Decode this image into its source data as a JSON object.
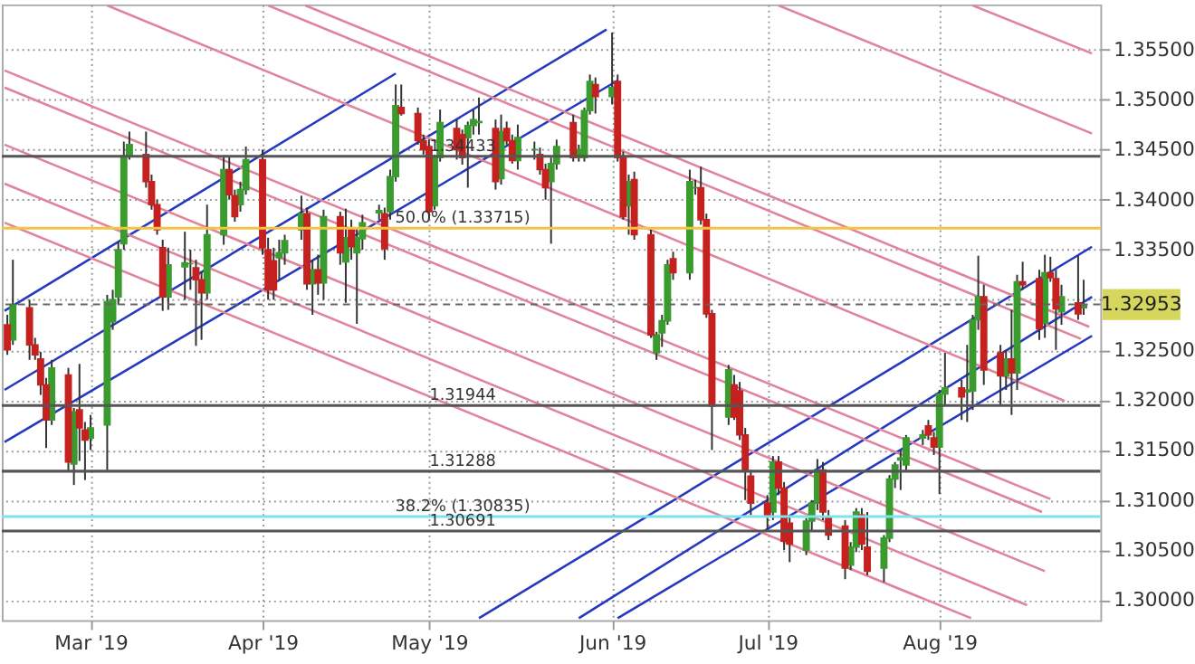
{
  "chart_data": {
    "type": "candlestick",
    "xlim": [
      "2019-02-13",
      "2019-08-30"
    ],
    "xticks": [
      {
        "value": "2019-03-01",
        "label": "Mar '19"
      },
      {
        "value": "2019-04-01",
        "label": "Apr '19"
      },
      {
        "value": "2019-05-01",
        "label": "May '19"
      },
      {
        "value": "2019-06-03",
        "label": "Jun '19"
      },
      {
        "value": "2019-07-01",
        "label": "Jul '19"
      },
      {
        "value": "2019-08-01",
        "label": "Aug '19"
      }
    ],
    "ylim": [
      1.298,
      1.3595
    ],
    "yticks": [
      {
        "value": 1.3,
        "label": "1.30000"
      },
      {
        "value": 1.305,
        "label": "1.30500"
      },
      {
        "value": 1.31,
        "label": "1.31000"
      },
      {
        "value": 1.315,
        "label": "1.31500"
      },
      {
        "value": 1.32,
        "label": "1.32000"
      },
      {
        "value": 1.325,
        "label": "1.32500"
      },
      {
        "value": 1.33,
        "label": null
      },
      {
        "value": 1.335,
        "label": "1.33500"
      },
      {
        "value": 1.34,
        "label": "1.34000"
      },
      {
        "value": 1.345,
        "label": "1.34500"
      },
      {
        "value": 1.35,
        "label": "1.35000"
      },
      {
        "value": 1.355,
        "label": "1.35500"
      }
    ],
    "grid": true,
    "series": [
      {
        "color": "#3a9b2e",
        "x": [
          "2019-02-15",
          "2019-02-22",
          "2019-02-26",
          "2019-03-01",
          "2019-03-04",
          "2019-03-05",
          "2019-03-06",
          "2019-03-07",
          "2019-03-08",
          "2019-03-15",
          "2019-03-18",
          "2019-03-19",
          "2019-03-22",
          "2019-03-25",
          "2019-03-28",
          "2019-03-29",
          "2019-04-04",
          "2019-04-05",
          "2019-04-08",
          "2019-04-10",
          "2019-04-12",
          "2019-04-16",
          "2019-04-18",
          "2019-04-19",
          "2019-04-22",
          "2019-04-24",
          "2019-04-25",
          "2019-05-02",
          "2019-05-03",
          "2019-05-08",
          "2019-05-09",
          "2019-05-10",
          "2019-05-14",
          "2019-05-17",
          "2019-05-20",
          "2019-05-23",
          "2019-05-24",
          "2019-05-28",
          "2019-05-29",
          "2019-05-30",
          "2019-06-03",
          "2019-06-06",
          "2019-06-11",
          "2019-06-12",
          "2019-06-13",
          "2019-06-17",
          "2019-06-18",
          "2019-06-24",
          "2019-07-02",
          "2019-07-08",
          "2019-07-09",
          "2019-07-10",
          "2019-07-16",
          "2019-07-17",
          "2019-07-22",
          "2019-07-23",
          "2019-07-24",
          "2019-07-25",
          "2019-07-26",
          "2019-07-29",
          "2019-08-01",
          "2019-08-02",
          "2019-08-06",
          "2019-08-07",
          "2019-08-08",
          "2019-08-13",
          "2019-08-15",
          "2019-08-20",
          "2019-08-23",
          "2019-08-27"
        ],
        "ohlc": [
          [
            1.326,
            1.334,
            1.3255,
            1.3295
          ],
          [
            1.318,
            1.324,
            1.3175,
            1.3232
          ],
          [
            1.3136,
            1.3192,
            1.3115,
            1.3188
          ],
          [
            1.3162,
            1.3185,
            1.315,
            1.3172
          ],
          [
            1.3175,
            1.3305,
            1.313,
            1.3298
          ],
          [
            1.3278,
            1.331,
            1.327,
            1.33
          ],
          [
            1.3303,
            1.3358,
            1.3295,
            1.335
          ],
          [
            1.3356,
            1.3458,
            1.335,
            1.3444
          ],
          [
            1.3444,
            1.3468,
            1.344,
            1.3455
          ],
          [
            1.3303,
            1.3352,
            1.329,
            1.3335
          ],
          [
            1.3333,
            1.3368,
            1.33,
            1.3337
          ],
          [
            1.3336,
            1.335,
            1.331,
            1.3336
          ],
          [
            1.3307,
            1.3395,
            1.33,
            1.3365
          ],
          [
            1.3365,
            1.3444,
            1.3355,
            1.343
          ],
          [
            1.3395,
            1.3418,
            1.3388,
            1.341
          ],
          [
            1.341,
            1.3453,
            1.3405,
            1.344
          ],
          [
            1.3342,
            1.336,
            1.332,
            1.3347
          ],
          [
            1.3347,
            1.3365,
            1.3335,
            1.3359
          ],
          [
            1.337,
            1.3404,
            1.336,
            1.3386
          ],
          [
            1.3316,
            1.334,
            1.3285,
            1.333
          ],
          [
            1.3317,
            1.339,
            1.33,
            1.3383
          ],
          [
            1.3338,
            1.3391,
            1.3297,
            1.3362
          ],
          [
            1.3347,
            1.3372,
            1.3276,
            1.3362
          ],
          [
            1.3361,
            1.3385,
            1.335,
            1.3377
          ],
          [
            1.3387,
            1.3395,
            1.338,
            1.3389
          ],
          [
            1.3388,
            1.343,
            1.338,
            1.3423
          ],
          [
            1.3423,
            1.3515,
            1.3418,
            1.3494
          ],
          [
            1.3394,
            1.3445,
            1.339,
            1.3442
          ],
          [
            1.3442,
            1.349,
            1.3438,
            1.3477
          ],
          [
            1.3462,
            1.3478,
            1.3412,
            1.3474
          ],
          [
            1.3474,
            1.349,
            1.3465,
            1.348
          ],
          [
            1.3477,
            1.3502,
            1.3465,
            1.3478
          ],
          [
            1.3421,
            1.3485,
            1.3415,
            1.3468
          ],
          [
            1.3439,
            1.3475,
            1.343,
            1.3462
          ],
          [
            1.345,
            1.3458,
            1.344,
            1.345
          ],
          [
            1.3418,
            1.3442,
            1.3356,
            1.3436
          ],
          [
            1.3436,
            1.346,
            1.343,
            1.3453
          ],
          [
            1.3442,
            1.3455,
            1.3438,
            1.345
          ],
          [
            1.3442,
            1.3492,
            1.3438,
            1.3489
          ],
          [
            1.3489,
            1.3525,
            1.3485,
            1.3518
          ],
          [
            1.3503,
            1.3567,
            1.3495,
            1.3512
          ],
          [
            1.3394,
            1.3425,
            1.3365,
            1.3418
          ],
          [
            1.3247,
            1.3268,
            1.324,
            1.3265
          ],
          [
            1.3267,
            1.3285,
            1.3253,
            1.3279
          ],
          [
            1.3279,
            1.334,
            1.3275,
            1.3335
          ],
          [
            1.3327,
            1.343,
            1.332,
            1.3418
          ],
          [
            1.3412,
            1.342,
            1.3405,
            1.3412
          ],
          [
            1.3183,
            1.3235,
            1.3175,
            1.323
          ],
          [
            1.3088,
            1.3144,
            1.308,
            1.3138
          ],
          [
            1.305,
            1.3082,
            1.3045,
            1.3079
          ],
          [
            1.3079,
            1.31,
            1.307,
            1.3097
          ],
          [
            1.3097,
            1.3141,
            1.309,
            1.313
          ],
          [
            1.3035,
            1.3058,
            1.303,
            1.3053
          ],
          [
            1.3053,
            1.3092,
            1.3048,
            1.3088
          ],
          [
            1.3032,
            1.3065,
            1.3018,
            1.3062
          ],
          [
            1.3062,
            1.3125,
            1.3058,
            1.3121
          ],
          [
            1.3121,
            1.3138,
            1.3112,
            1.3135
          ],
          [
            1.314,
            1.315,
            1.311,
            1.3142
          ],
          [
            1.3135,
            1.3165,
            1.313,
            1.3162
          ],
          [
            1.3162,
            1.317,
            1.3155,
            1.3165
          ],
          [
            1.3153,
            1.321,
            1.3106,
            1.3206
          ],
          [
            1.3206,
            1.3247,
            1.3194,
            1.3212
          ],
          [
            1.3208,
            1.3255,
            1.3178,
            1.321
          ],
          [
            1.3209,
            1.3285,
            1.319,
            1.328
          ],
          [
            1.328,
            1.3344,
            1.327,
            1.3303
          ],
          [
            1.3224,
            1.325,
            1.321,
            1.3241
          ],
          [
            1.3227,
            1.3325,
            1.321,
            1.3318
          ],
          [
            1.3277,
            1.3345,
            1.3262,
            1.3327
          ],
          [
            1.3288,
            1.3315,
            1.3275,
            1.3303
          ],
          [
            1.3292,
            1.332,
            1.3285,
            1.3295
          ]
        ]
      },
      {
        "color": "#c4211f",
        "x": [
          "2019-02-14",
          "2019-02-18",
          "2019-02-19",
          "2019-02-20",
          "2019-02-21",
          "2019-02-25",
          "2019-02-27",
          "2019-02-28",
          "2019-03-11",
          "2019-03-12",
          "2019-03-13",
          "2019-03-14",
          "2019-03-20",
          "2019-03-21",
          "2019-03-26",
          "2019-03-27",
          "2019-04-01",
          "2019-04-02",
          "2019-04-03",
          "2019-04-09",
          "2019-04-11",
          "2019-04-15",
          "2019-04-17",
          "2019-04-23",
          "2019-04-26",
          "2019-04-29",
          "2019-04-30",
          "2019-05-01",
          "2019-05-06",
          "2019-05-07",
          "2019-05-13",
          "2019-05-15",
          "2019-05-16",
          "2019-05-21",
          "2019-05-22",
          "2019-05-27",
          "2019-05-31",
          "2019-06-04",
          "2019-06-05",
          "2019-06-07",
          "2019-06-10",
          "2019-06-14",
          "2019-06-19",
          "2019-06-20",
          "2019-06-21",
          "2019-06-25",
          "2019-06-26",
          "2019-06-27",
          "2019-06-28",
          "2019-07-01",
          "2019-07-03",
          "2019-07-04",
          "2019-07-05",
          "2019-07-11",
          "2019-07-12",
          "2019-07-15",
          "2019-07-18",
          "2019-07-19",
          "2019-07-30",
          "2019-07-31",
          "2019-08-05",
          "2019-08-09",
          "2019-08-12",
          "2019-08-14",
          "2019-08-16",
          "2019-08-19",
          "2019-08-21",
          "2019-08-22",
          "2019-08-26"
        ],
        "ohlc": [
          [
            1.3275,
            1.3285,
            1.3245,
            1.325
          ],
          [
            1.3292,
            1.33,
            1.324,
            1.3255
          ],
          [
            1.3255,
            1.3262,
            1.324,
            1.3245
          ],
          [
            1.3241,
            1.3248,
            1.3205,
            1.3215
          ],
          [
            1.3215,
            1.3222,
            1.3152,
            1.318
          ],
          [
            1.3225,
            1.3232,
            1.3128,
            1.3138
          ],
          [
            1.319,
            1.3236,
            1.3139,
            1.3172
          ],
          [
            1.317,
            1.3178,
            1.312,
            1.316
          ],
          [
            1.3445,
            1.3468,
            1.3412,
            1.3418
          ],
          [
            1.3418,
            1.3425,
            1.339,
            1.3395
          ],
          [
            1.3395,
            1.34,
            1.3365,
            1.337
          ],
          [
            1.3352,
            1.336,
            1.3289,
            1.3303
          ],
          [
            1.3332,
            1.334,
            1.3254,
            1.332
          ],
          [
            1.332,
            1.3328,
            1.326,
            1.3307
          ],
          [
            1.343,
            1.3444,
            1.34,
            1.3405
          ],
          [
            1.3404,
            1.341,
            1.3378,
            1.3383
          ],
          [
            1.344,
            1.345,
            1.3345,
            1.3352
          ],
          [
            1.335,
            1.3362,
            1.33,
            1.331
          ],
          [
            1.3339,
            1.3352,
            1.33,
            1.331
          ],
          [
            1.3386,
            1.3392,
            1.331,
            1.3316
          ],
          [
            1.333,
            1.3345,
            1.3305,
            1.3317
          ],
          [
            1.3383,
            1.3388,
            1.3335,
            1.3347
          ],
          [
            1.337,
            1.338,
            1.334,
            1.3353
          ],
          [
            1.3386,
            1.3392,
            1.334,
            1.3351
          ],
          [
            1.3492,
            1.3515,
            1.3484,
            1.3486
          ],
          [
            1.3486,
            1.3492,
            1.3455,
            1.3459
          ],
          [
            1.3459,
            1.3465,
            1.3445,
            1.345
          ],
          [
            1.3453,
            1.346,
            1.338,
            1.3388
          ],
          [
            1.3471,
            1.348,
            1.344,
            1.345
          ],
          [
            1.3465,
            1.347,
            1.3435,
            1.3442
          ],
          [
            1.3471,
            1.348,
            1.341,
            1.3418
          ],
          [
            1.3471,
            1.3478,
            1.3455,
            1.3459
          ],
          [
            1.3459,
            1.3465,
            1.3436,
            1.3439
          ],
          [
            1.3445,
            1.3452,
            1.3425,
            1.343
          ],
          [
            1.343,
            1.3436,
            1.34,
            1.3412
          ],
          [
            1.3477,
            1.3485,
            1.3438,
            1.3442
          ],
          [
            1.3515,
            1.3522,
            1.3486,
            1.3503
          ],
          [
            1.3518,
            1.3525,
            1.3438,
            1.3442
          ],
          [
            1.3442,
            1.3448,
            1.338,
            1.3383
          ],
          [
            1.342,
            1.3428,
            1.336,
            1.3365
          ],
          [
            1.3365,
            1.337,
            1.3262,
            1.3265
          ],
          [
            1.3341,
            1.3348,
            1.332,
            1.3327
          ],
          [
            1.3412,
            1.3433,
            1.3375,
            1.338
          ],
          [
            1.338,
            1.3386,
            1.3282,
            1.3286
          ],
          [
            1.3286,
            1.329,
            1.315,
            1.3194
          ],
          [
            1.3215,
            1.3225,
            1.318,
            1.3183
          ],
          [
            1.3209,
            1.3218,
            1.316,
            1.3165
          ],
          [
            1.3165,
            1.3172,
            1.31,
            1.313
          ],
          [
            1.3124,
            1.313,
            1.3085,
            1.3097
          ],
          [
            1.3097,
            1.3105,
            1.307,
            1.3085
          ],
          [
            1.3138,
            1.3144,
            1.3105,
            1.3112
          ],
          [
            1.3112,
            1.3118,
            1.305,
            1.3059
          ],
          [
            1.3077,
            1.3085,
            1.3038,
            1.3056
          ],
          [
            1.313,
            1.3138,
            1.308,
            1.3088
          ],
          [
            1.3082,
            1.309,
            1.306,
            1.3065
          ],
          [
            1.3074,
            1.308,
            1.3021,
            1.3032
          ],
          [
            1.3085,
            1.3092,
            1.305,
            1.3056
          ],
          [
            1.3053,
            1.3088,
            1.3025,
            1.3029
          ],
          [
            1.3174,
            1.318,
            1.316,
            1.3165
          ],
          [
            1.3162,
            1.3168,
            1.3145,
            1.3153
          ],
          [
            1.3212,
            1.322,
            1.318,
            1.3203
          ],
          [
            1.3303,
            1.3315,
            1.3215,
            1.323
          ],
          [
            1.3247,
            1.3255,
            1.3195,
            1.3224
          ],
          [
            1.3241,
            1.329,
            1.3185,
            1.3227
          ],
          [
            1.3318,
            1.3338,
            1.331,
            1.3315
          ],
          [
            1.3321,
            1.333,
            1.326,
            1.3271
          ],
          [
            1.3327,
            1.3343,
            1.3318,
            1.3322
          ],
          [
            1.3321,
            1.333,
            1.325,
            1.3291
          ],
          [
            1.3297,
            1.3344,
            1.328,
            1.3286
          ]
        ]
      },
      {
        "type": "line",
        "color": "#2438c0",
        "x": [
          "2019-02-13T12:00",
          "2019-04-25"
        ],
        "values": [
          1.3289,
          1.3526
        ]
      },
      {
        "type": "line",
        "color": "#2438c0",
        "x": [
          "2019-02-13T12:00",
          "2019-06-02"
        ],
        "values": [
          1.321,
          1.357
        ]
      },
      {
        "type": "line",
        "color": "#2438c0",
        "x": [
          "2019-02-13T12:00",
          "2019-06-04"
        ],
        "values": [
          1.3158,
          1.3519
        ]
      },
      {
        "type": "line",
        "color": "#2438c0",
        "x": [
          "2019-05-10",
          "2019-08-28T12:00"
        ],
        "values": [
          1.2982,
          1.3353
        ]
      },
      {
        "type": "line",
        "color": "#2438c0",
        "x": [
          "2019-05-28",
          "2019-08-28T12:00"
        ],
        "values": [
          1.2982,
          1.3303
        ]
      },
      {
        "type": "line",
        "color": "#2438c0",
        "x": [
          "2019-06-04",
          "2019-08-28T12:00"
        ],
        "values": [
          1.2982,
          1.3264
        ]
      },
      {
        "type": "line",
        "color": "#e0849c",
        "x": [
          "2019-08-07",
          "2019-08-28T12:00"
        ],
        "values": [
          1.3594,
          1.3546
        ]
      },
      {
        "type": "line",
        "color": "#e0849c",
        "x": [
          "2019-07-03",
          "2019-08-28T12:00"
        ],
        "values": [
          1.3594,
          1.3466
        ]
      },
      {
        "type": "line",
        "color": "#e0849c",
        "x": [
          "2019-04-08T17:00",
          "2019-08-28"
        ],
        "values": [
          1.3594,
          1.3273
        ]
      },
      {
        "type": "line",
        "color": "#e0849c",
        "x": [
          "2019-04-02",
          "2019-08-26T12:00"
        ],
        "values": [
          1.3594,
          1.3261
        ]
      },
      {
        "type": "line",
        "color": "#e0849c",
        "x": [
          "2019-03-04",
          "2019-08-23T14:00"
        ],
        "values": [
          1.3594,
          1.3199
        ]
      },
      {
        "type": "line",
        "color": "#e0849c",
        "x": [
          "2019-02-13T12:00",
          "2019-08-21"
        ],
        "values": [
          1.3529,
          1.3101
        ]
      },
      {
        "type": "line",
        "color": "#e0849c",
        "x": [
          "2019-02-13T12:00",
          "2019-08-19T12:00"
        ],
        "values": [
          1.3512,
          1.3088
        ]
      },
      {
        "type": "line",
        "color": "#e0849c",
        "x": [
          "2019-02-13T12:00",
          "2019-08-20"
        ],
        "values": [
          1.3455,
          1.3029
        ]
      },
      {
        "type": "line",
        "color": "#e0849c",
        "x": [
          "2019-02-13T12:00",
          "2019-08-16T19:00"
        ],
        "values": [
          1.3416,
          1.2995
        ]
      },
      {
        "type": "line",
        "color": "#e0849c",
        "x": [
          "2019-02-13T12:00",
          "2019-08-06T17:00"
        ],
        "values": [
          1.3377,
          1.2982
        ]
      }
    ],
    "ref_lines": [
      {
        "axis": "y",
        "value": 1.34433,
        "label": "1.34433",
        "color": "#555555"
      },
      {
        "axis": "y",
        "value": 1.33715,
        "label": "50.0% (1.33715)",
        "color": "#f5c343"
      },
      {
        "axis": "y",
        "value": 1.31944,
        "label": "1.31944",
        "color": "#555555"
      },
      {
        "axis": "y",
        "value": 1.31288,
        "label": "1.31288",
        "color": "#555555"
      },
      {
        "axis": "y",
        "value": 1.30835,
        "label": "38.2% (1.30835)",
        "color": "#7fe3ee"
      },
      {
        "axis": "y",
        "value": 1.30691,
        "label": "1.30691",
        "color": "#555555"
      },
      {
        "axis": "y",
        "value": 1.32953,
        "label": "1.32953",
        "color": "#666666",
        "line_style": "dashed"
      }
    ]
  }
}
